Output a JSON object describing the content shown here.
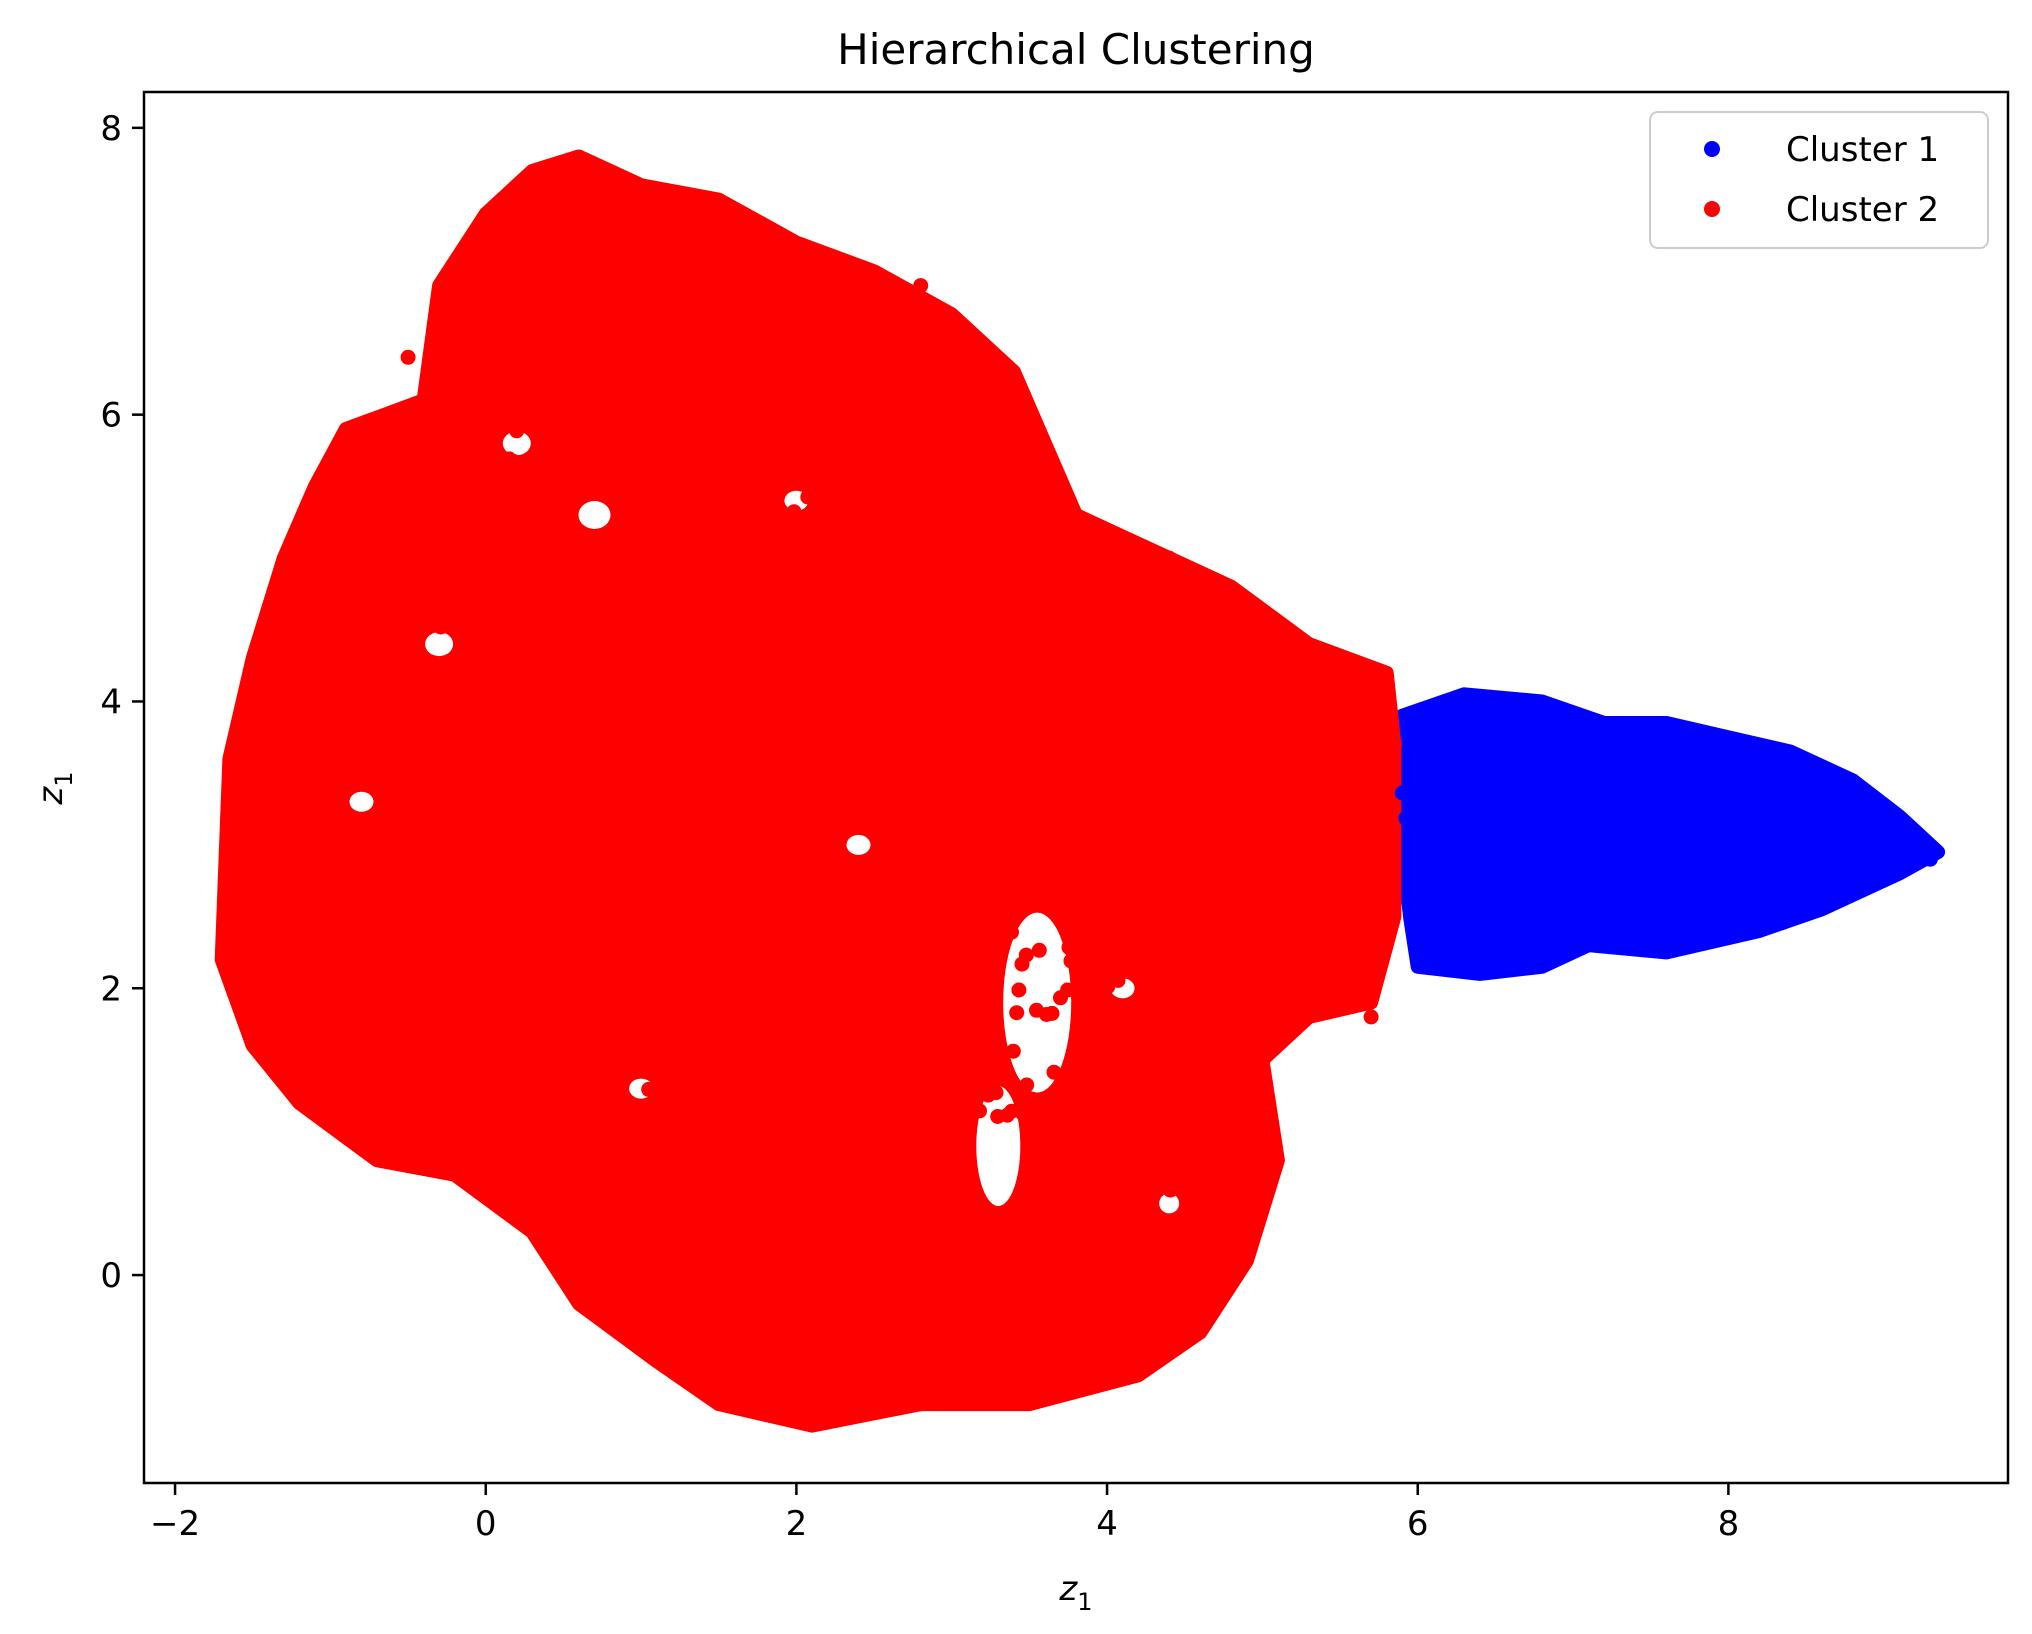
{
  "chart_data": {
    "type": "scatter",
    "title": "Hierarchical Clustering",
    "xlabel_base": "z",
    "xlabel_sub": "1",
    "ylabel_base": "z",
    "ylabel_sub": "1",
    "xlim": [
      -2.2,
      9.8
    ],
    "ylim": [
      -1.45,
      8.25
    ],
    "xticks": [
      -2,
      0,
      2,
      4,
      6,
      8
    ],
    "xtick_labels": [
      "−2",
      "0",
      "2",
      "4",
      "6",
      "8"
    ],
    "yticks": [
      0,
      2,
      4,
      6,
      8
    ],
    "ytick_labels": [
      "0",
      "2",
      "4",
      "6",
      "8"
    ],
    "grid": false,
    "legend_position": "top-right",
    "series": [
      {
        "name": "Cluster 1",
        "color": "#0000ff",
        "marker": "circle",
        "approx_point_count": 650,
        "region_outline": [
          [
            5.9,
            3.9
          ],
          [
            6.3,
            4.05
          ],
          [
            6.8,
            4.0
          ],
          [
            7.2,
            3.85
          ],
          [
            7.6,
            3.85
          ],
          [
            8.0,
            3.75
          ],
          [
            8.4,
            3.65
          ],
          [
            8.8,
            3.45
          ],
          [
            9.1,
            3.2
          ],
          [
            9.35,
            2.95
          ],
          [
            9.1,
            2.8
          ],
          [
            8.6,
            2.55
          ],
          [
            8.2,
            2.4
          ],
          [
            7.6,
            2.25
          ],
          [
            7.1,
            2.3
          ],
          [
            6.8,
            2.15
          ],
          [
            6.4,
            2.1
          ],
          [
            6.0,
            2.15
          ],
          [
            5.95,
            2.5
          ],
          [
            5.9,
            3.0
          ]
        ],
        "points": [
          [
            6.1,
            3.6
          ],
          [
            6.2,
            2.3
          ],
          [
            6.3,
            3.9
          ],
          [
            6.35,
            2.8
          ],
          [
            6.4,
            3.2
          ],
          [
            6.5,
            3.0
          ],
          [
            6.5,
            2.6
          ],
          [
            6.6,
            3.5
          ],
          [
            6.6,
            2.2
          ],
          [
            6.7,
            3.8
          ],
          [
            6.8,
            2.7
          ],
          [
            7.0,
            3.4
          ],
          [
            7.2,
            2.3
          ],
          [
            7.4,
            3.7
          ],
          [
            7.5,
            3.1
          ],
          [
            7.55,
            2.8
          ],
          [
            7.6,
            3.6
          ],
          [
            7.7,
            2.6
          ],
          [
            7.8,
            3.3
          ],
          [
            8.0,
            2.9
          ],
          [
            8.1,
            3.7
          ],
          [
            8.4,
            3.1
          ],
          [
            8.6,
            3.4
          ],
          [
            8.8,
            3.2
          ],
          [
            9.0,
            3.0
          ],
          [
            9.3,
            2.9
          ]
        ]
      },
      {
        "name": "Cluster 2",
        "color": "#ff0000",
        "marker": "circle",
        "approx_point_count": 6500,
        "region_outline": [
          [
            -1.7,
            2.2
          ],
          [
            -1.65,
            3.6
          ],
          [
            -1.5,
            4.3
          ],
          [
            -1.3,
            5.0
          ],
          [
            -1.1,
            5.5
          ],
          [
            -0.9,
            5.9
          ],
          [
            -0.4,
            6.1
          ],
          [
            -0.3,
            6.9
          ],
          [
            0.0,
            7.4
          ],
          [
            0.3,
            7.7
          ],
          [
            0.6,
            7.8
          ],
          [
            1.0,
            7.6
          ],
          [
            1.5,
            7.5
          ],
          [
            2.0,
            7.2
          ],
          [
            2.5,
            7.0
          ],
          [
            3.0,
            6.7
          ],
          [
            3.4,
            6.3
          ],
          [
            3.6,
            5.8
          ],
          [
            3.8,
            5.3
          ],
          [
            4.2,
            5.1
          ],
          [
            4.8,
            4.8
          ],
          [
            5.3,
            4.4
          ],
          [
            5.8,
            4.2
          ],
          [
            5.85,
            3.7
          ],
          [
            5.85,
            2.5
          ],
          [
            5.7,
            1.9
          ],
          [
            5.3,
            1.8
          ],
          [
            5.0,
            1.5
          ],
          [
            5.1,
            0.8
          ],
          [
            4.9,
            0.1
          ],
          [
            4.6,
            -0.4
          ],
          [
            4.2,
            -0.7
          ],
          [
            3.5,
            -0.9
          ],
          [
            2.8,
            -0.9
          ],
          [
            2.1,
            -1.05
          ],
          [
            1.5,
            -0.9
          ],
          [
            1.1,
            -0.6
          ],
          [
            0.6,
            -0.2
          ],
          [
            0.3,
            0.3
          ],
          [
            -0.2,
            0.7
          ],
          [
            -0.7,
            0.8
          ],
          [
            -1.2,
            1.2
          ],
          [
            -1.5,
            1.6
          ]
        ],
        "points": [
          [
            -1.6,
            2.2
          ],
          [
            -1.5,
            3.5
          ],
          [
            -1.4,
            1.5
          ],
          [
            -1.3,
            4.6
          ],
          [
            -1.0,
            5.5
          ],
          [
            -0.8,
            2.8
          ],
          [
            -0.5,
            6.4
          ],
          [
            -0.4,
            1.2
          ],
          [
            -0.2,
            5.0
          ],
          [
            0.0,
            6.7
          ],
          [
            0.2,
            0.8
          ],
          [
            0.3,
            7.5
          ],
          [
            0.5,
            4.0
          ],
          [
            0.6,
            -0.1
          ],
          [
            0.8,
            2.5
          ],
          [
            1.0,
            7.3
          ],
          [
            1.2,
            1.0
          ],
          [
            1.4,
            5.9
          ],
          [
            1.6,
            -0.8
          ],
          [
            1.8,
            3.3
          ],
          [
            2.0,
            -1.0
          ],
          [
            2.2,
            6.8
          ],
          [
            2.4,
            0.4
          ],
          [
            2.6,
            4.8
          ],
          [
            2.8,
            6.9
          ],
          [
            3.0,
            -0.8
          ],
          [
            3.2,
            2.0
          ],
          [
            3.4,
            6.2
          ],
          [
            3.5,
            0.8
          ],
          [
            3.8,
            4.9
          ],
          [
            4.0,
            -0.6
          ],
          [
            4.2,
            2.4
          ],
          [
            4.4,
            5.0
          ],
          [
            4.6,
            -0.2
          ],
          [
            4.7,
            1.8
          ],
          [
            4.8,
            4.6
          ],
          [
            5.0,
            0.9
          ],
          [
            5.0,
            3.2
          ],
          [
            5.3,
            2.6
          ],
          [
            5.5,
            4.3
          ],
          [
            5.6,
            2.3
          ],
          [
            5.7,
            1.8
          ],
          [
            5.85,
            3.7
          ]
        ]
      }
    ]
  }
}
